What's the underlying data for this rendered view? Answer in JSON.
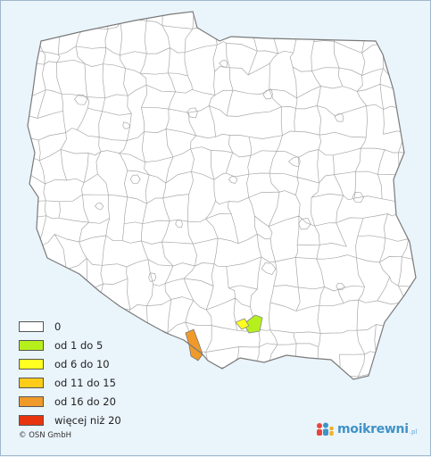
{
  "map": {
    "background_color": "#eaf4fb",
    "country_fill": "#ffffff",
    "border_color": "#a8a8a8",
    "outline_color": "#7a7a7a",
    "highlighted_regions": [
      {
        "level": "od 1 do 5",
        "color": "#b6f01c",
        "location": "south-east"
      },
      {
        "level": "od 6 do 10",
        "color": "#ffff22",
        "location": "south-east"
      },
      {
        "level": "od 16 do 20",
        "color": "#f09a2a",
        "location": "south"
      }
    ]
  },
  "legend": {
    "items": [
      {
        "label": "0",
        "color": "#ffffff"
      },
      {
        "label": "od 1 do 5",
        "color": "#b6f01c"
      },
      {
        "label": "od 6 do 10",
        "color": "#ffff22"
      },
      {
        "label": "od 11 do 15",
        "color": "#ffcc1a"
      },
      {
        "label": "od 16 do 20",
        "color": "#f09a2a"
      },
      {
        "label": "więcej niż 20",
        "color": "#e8340e"
      }
    ]
  },
  "footer": {
    "copyright": "© OSN GmbH",
    "brand": "moikrewni",
    "brand_suffix": ".pl",
    "brand_icon": "family-icon"
  }
}
